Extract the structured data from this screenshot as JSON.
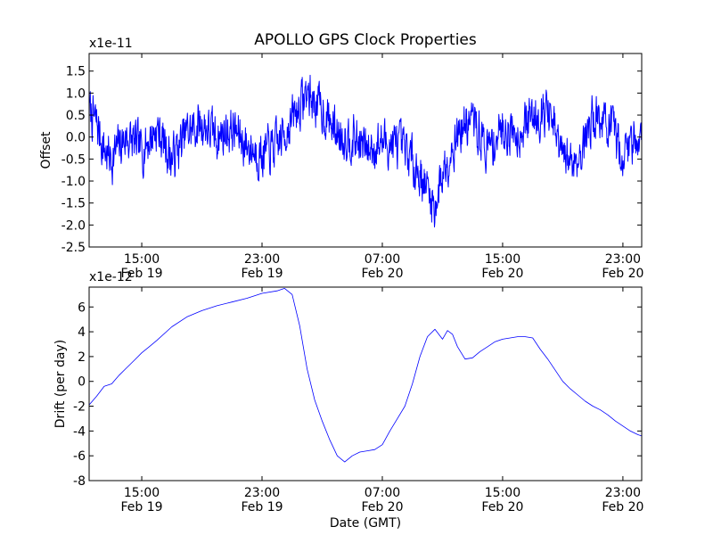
{
  "figure": {
    "title": "APOLLO GPS Clock Properties",
    "xlabel": "Date (GMT)"
  },
  "chart_data": [
    {
      "type": "line",
      "title": "APOLLO GPS Clock Properties",
      "xlabel": "",
      "ylabel": "Offset",
      "y_multiplier": "x1e-11",
      "xlim": [
        "2012-02-19 11:30",
        "2012-02-21 00:15"
      ],
      "ylim": [
        -2.5,
        1.9
      ],
      "yticks": [
        -2.5,
        -2.0,
        -1.5,
        -1.0,
        -0.5,
        0.0,
        0.5,
        1.0,
        1.5
      ],
      "ytick_labels": [
        "-2.5",
        "-2.0",
        "-1.5",
        "-1.0",
        "-0.5",
        "0.0",
        "0.5",
        "1.0",
        "1.5"
      ],
      "xticks": [
        {
          "x": "2012-02-19 15:00",
          "time": "15:00",
          "date": "Feb 19"
        },
        {
          "x": "2012-02-19 23:00",
          "time": "23:00",
          "date": "Feb 19"
        },
        {
          "x": "2012-02-20 07:00",
          "time": "07:00",
          "date": "Feb 20"
        },
        {
          "x": "2012-02-20 15:00",
          "time": "15:00",
          "date": "Feb 20"
        },
        {
          "x": "2012-02-20 23:00",
          "time": "23:00",
          "date": "Feb 20"
        }
      ],
      "grid": false,
      "color": "#0000ff",
      "line_width": 1,
      "series": [
        {
          "x": [
            "2012-02-19 11:30",
            "2012-02-19 12:00",
            "2012-02-19 12:30",
            "2012-02-19 13:00",
            "2012-02-19 13:30",
            "2012-02-19 14:00",
            "2012-02-19 15:00",
            "2012-02-19 16:00",
            "2012-02-19 17:00",
            "2012-02-19 18:00",
            "2012-02-19 19:00",
            "2012-02-19 20:00",
            "2012-02-19 21:00",
            "2012-02-19 22:00",
            "2012-02-19 23:00",
            "2012-02-20 00:00",
            "2012-02-20 01:00",
            "2012-02-20 02:00",
            "2012-02-20 03:00",
            "2012-02-20 04:00",
            "2012-02-20 05:00",
            "2012-02-20 06:00",
            "2012-02-20 07:00",
            "2012-02-20 08:00",
            "2012-02-20 09:00",
            "2012-02-20 09:45",
            "2012-02-20 10:30",
            "2012-02-20 11:00",
            "2012-02-20 12:00",
            "2012-02-20 13:00",
            "2012-02-20 14:00",
            "2012-02-20 15:00",
            "2012-02-20 16:00",
            "2012-02-20 17:00",
            "2012-02-20 18:00",
            "2012-02-20 19:00",
            "2012-02-20 20:00",
            "2012-02-20 21:00",
            "2012-02-20 22:00",
            "2012-02-20 23:00",
            "2012-02-21 00:00",
            "2012-02-21 00:15"
          ],
          "y": [
            0.6,
            0.3,
            -0.3,
            -0.5,
            -0.2,
            0.0,
            -0.3,
            0.2,
            -0.5,
            0.1,
            0.3,
            0.0,
            0.2,
            -0.2,
            -0.4,
            -0.2,
            0.4,
            1.0,
            0.6,
            0.1,
            0.0,
            -0.3,
            -0.1,
            -0.2,
            -0.5,
            -1.0,
            -1.6,
            -0.8,
            0.1,
            0.4,
            -0.3,
            0.2,
            0.1,
            0.5,
            0.6,
            -0.5,
            -0.5,
            0.5,
            0.3,
            -0.4,
            0.1,
            -0.1
          ]
        }
      ]
    },
    {
      "type": "line",
      "xlabel": "Date (GMT)",
      "ylabel": "Drift (per day)",
      "y_multiplier": "x1e-12",
      "xlim": [
        "2012-02-19 11:30",
        "2012-02-21 00:15"
      ],
      "ylim": [
        -8,
        7.6
      ],
      "yticks": [
        -8,
        -6,
        -4,
        -2,
        0,
        2,
        4,
        6
      ],
      "ytick_labels": [
        "-8",
        "-6",
        "-4",
        "-2",
        "0",
        "2",
        "4",
        "6"
      ],
      "xticks": [
        {
          "x": "2012-02-19 15:00",
          "time": "15:00",
          "date": "Feb 19"
        },
        {
          "x": "2012-02-19 23:00",
          "time": "23:00",
          "date": "Feb 19"
        },
        {
          "x": "2012-02-20 07:00",
          "time": "07:00",
          "date": "Feb 20"
        },
        {
          "x": "2012-02-20 15:00",
          "time": "15:00",
          "date": "Feb 20"
        },
        {
          "x": "2012-02-20 23:00",
          "time": "23:00",
          "date": "Feb 20"
        }
      ],
      "grid": false,
      "color": "#0000ff",
      "line_width": 0.8,
      "series": [
        {
          "x": [
            "2012-02-19 11:30",
            "2012-02-19 12:00",
            "2012-02-19 12:30",
            "2012-02-19 13:00",
            "2012-02-19 13:30",
            "2012-02-19 14:00",
            "2012-02-19 14:30",
            "2012-02-19 15:00",
            "2012-02-19 15:30",
            "2012-02-19 16:00",
            "2012-02-19 17:00",
            "2012-02-19 18:00",
            "2012-02-19 19:00",
            "2012-02-19 20:00",
            "2012-02-19 21:00",
            "2012-02-19 22:00",
            "2012-02-19 23:00",
            "2012-02-20 00:00",
            "2012-02-20 00:30",
            "2012-02-20 01:00",
            "2012-02-20 01:30",
            "2012-02-20 02:00",
            "2012-02-20 02:30",
            "2012-02-20 03:00",
            "2012-02-20 03:30",
            "2012-02-20 04:00",
            "2012-02-20 04:30",
            "2012-02-20 05:00",
            "2012-02-20 05:30",
            "2012-02-20 06:00",
            "2012-02-20 06:30",
            "2012-02-20 07:00",
            "2012-02-20 07:30",
            "2012-02-20 08:00",
            "2012-02-20 08:30",
            "2012-02-20 09:00",
            "2012-02-20 09:30",
            "2012-02-20 10:00",
            "2012-02-20 10:30",
            "2012-02-20 11:00",
            "2012-02-20 11:20",
            "2012-02-20 11:40",
            "2012-02-20 12:00",
            "2012-02-20 12:30",
            "2012-02-20 13:00",
            "2012-02-20 13:30",
            "2012-02-20 14:00",
            "2012-02-20 14:30",
            "2012-02-20 15:00",
            "2012-02-20 15:30",
            "2012-02-20 16:00",
            "2012-02-20 16:30",
            "2012-02-20 17:00",
            "2012-02-20 17:30",
            "2012-02-20 18:00",
            "2012-02-20 18:30",
            "2012-02-20 19:00",
            "2012-02-20 19:30",
            "2012-02-20 20:00",
            "2012-02-20 20:30",
            "2012-02-20 21:00",
            "2012-02-20 21:30",
            "2012-02-20 22:00",
            "2012-02-20 22:30",
            "2012-02-20 23:00",
            "2012-02-20 23:30",
            "2012-02-21 00:00",
            "2012-02-21 00:15"
          ],
          "y": [
            -1.9,
            -1.2,
            -0.4,
            -0.2,
            0.5,
            1.1,
            1.7,
            2.3,
            2.8,
            3.3,
            4.4,
            5.2,
            5.7,
            6.1,
            6.4,
            6.7,
            7.1,
            7.3,
            7.5,
            7.0,
            4.5,
            1.0,
            -1.5,
            -3.2,
            -4.7,
            -6.0,
            -6.5,
            -6.0,
            -5.7,
            -5.6,
            -5.5,
            -5.1,
            -4.0,
            -3.0,
            -2.0,
            -0.2,
            2.0,
            3.6,
            4.2,
            3.4,
            4.1,
            3.8,
            2.8,
            1.8,
            1.9,
            2.4,
            2.8,
            3.2,
            3.4,
            3.5,
            3.6,
            3.6,
            3.5,
            2.6,
            1.8,
            0.9,
            0.0,
            -0.6,
            -1.1,
            -1.6,
            -2.0,
            -2.3,
            -2.7,
            -3.2,
            -3.6,
            -4.0,
            -4.3,
            -4.4
          ]
        }
      ]
    }
  ]
}
